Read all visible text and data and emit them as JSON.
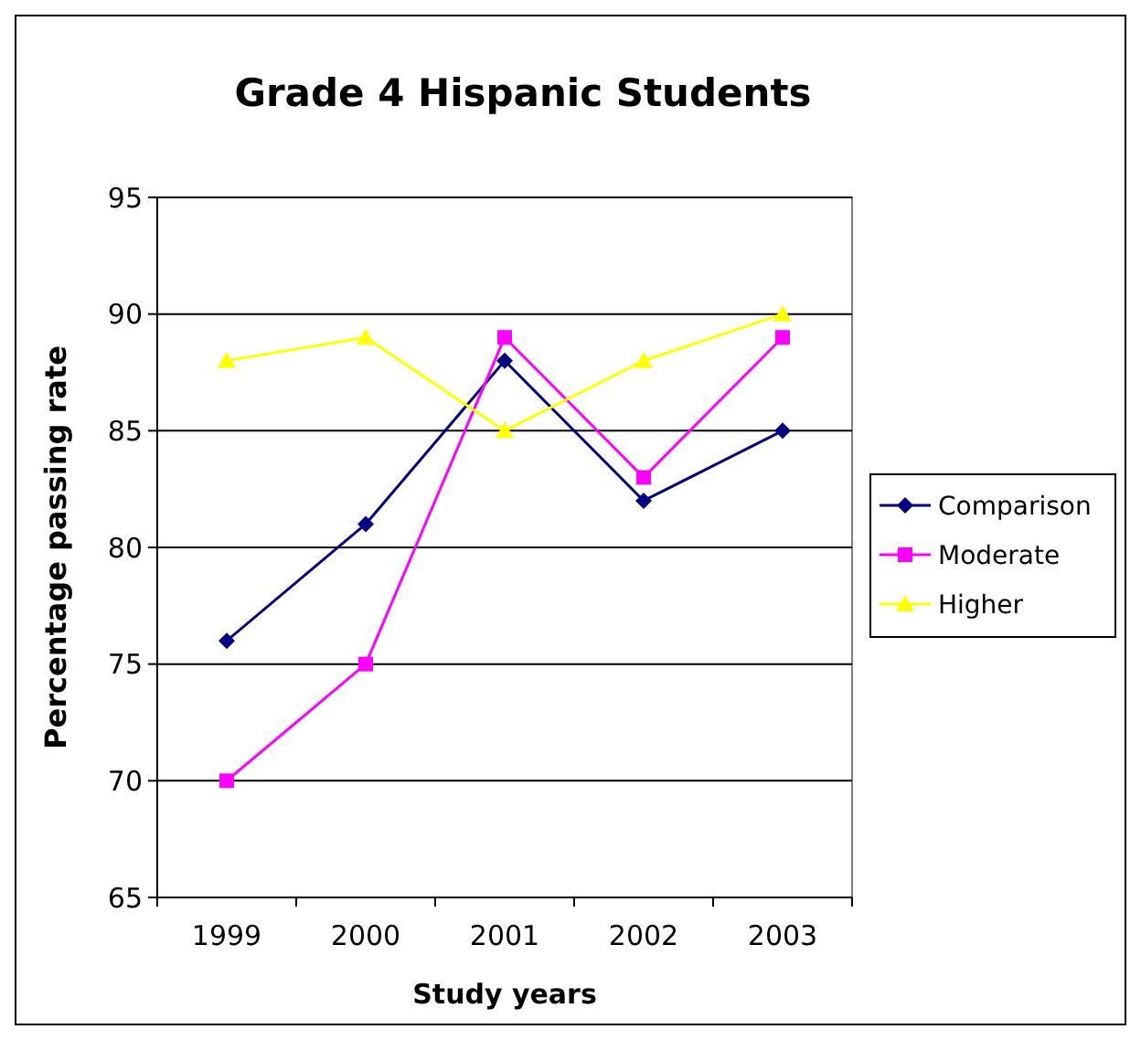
{
  "chart_data": {
    "type": "line",
    "title": "Grade 4 Hispanic Students",
    "xlabel": "Study years",
    "ylabel": "Percentage passing rate",
    "categories": [
      "1999",
      "2000",
      "2001",
      "2002",
      "2003"
    ],
    "series": [
      {
        "name": "Comparison",
        "color": "#000080",
        "marker": "diamond",
        "values": [
          76,
          81,
          88,
          82,
          85
        ]
      },
      {
        "name": "Moderate",
        "color": "#ff00ff",
        "marker": "square",
        "values": [
          70,
          75,
          89,
          83,
          89
        ]
      },
      {
        "name": "Higher",
        "color": "#ffff00",
        "marker": "triangle",
        "values": [
          88,
          89,
          85,
          88,
          90
        ]
      }
    ],
    "ylim": [
      65,
      95
    ],
    "yticks": [
      65,
      70,
      75,
      80,
      85,
      90,
      95
    ],
    "grid": "y",
    "legend": "right"
  }
}
